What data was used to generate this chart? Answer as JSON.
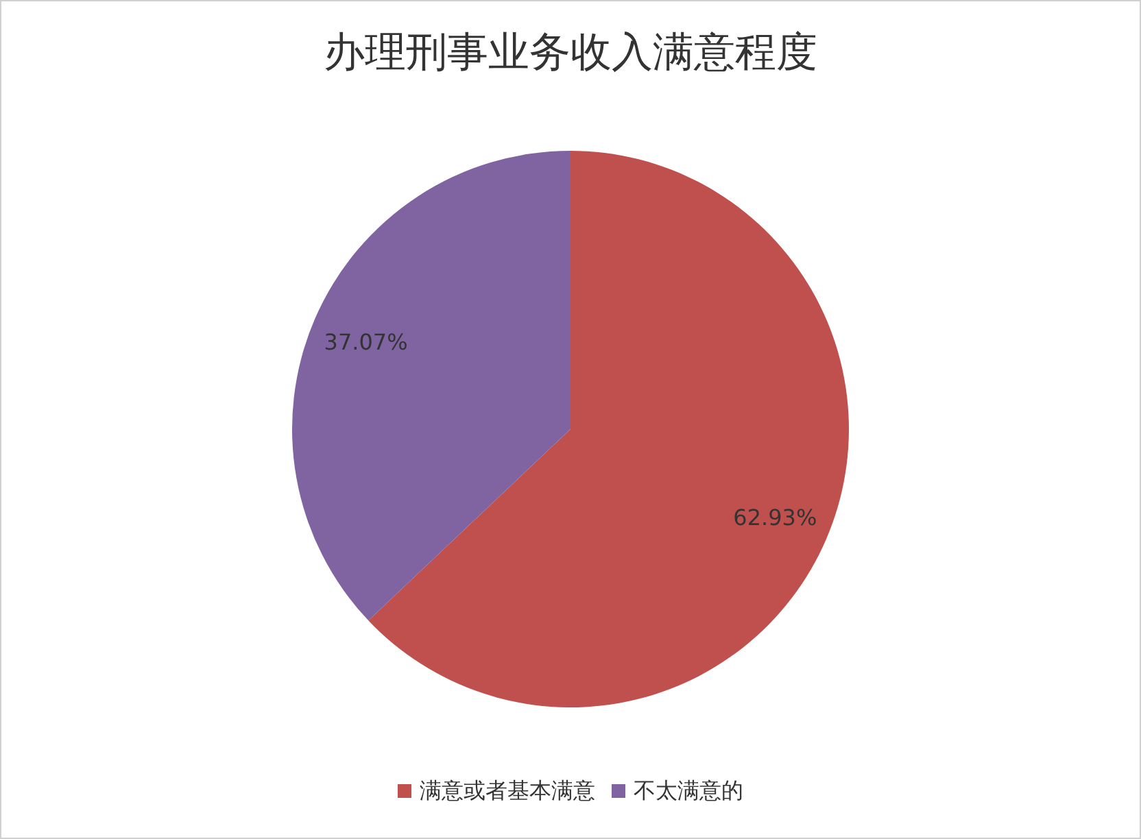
{
  "chart_data": {
    "type": "pie",
    "title": "办理刑事业务收入满意程度",
    "categories": [
      "满意或者基本满意",
      "不太满意的"
    ],
    "values": [
      62.93,
      37.07
    ],
    "colors": [
      "#c0504d",
      "#8064a2"
    ],
    "value_labels": [
      "62.93%",
      "37.07%"
    ],
    "legend": "bottom"
  }
}
